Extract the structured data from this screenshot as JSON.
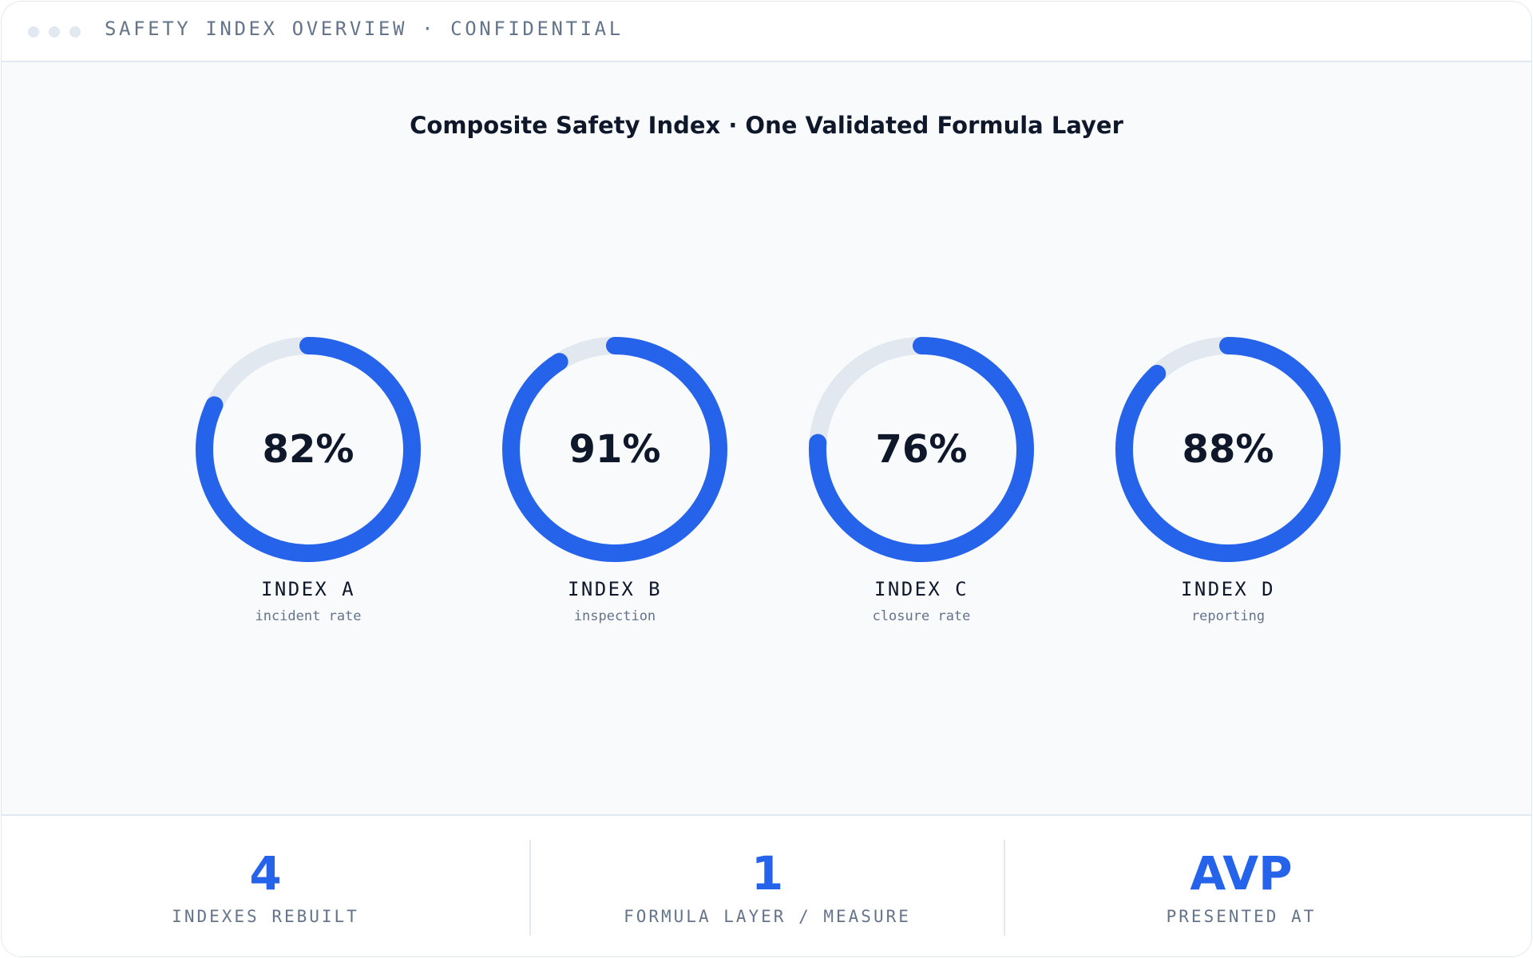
{
  "window": {
    "title": "SAFETY INDEX OVERVIEW · CONFIDENTIAL"
  },
  "main": {
    "headline": "Composite Safety Index · One Validated Formula Layer"
  },
  "colors": {
    "accent": "#2563eb",
    "track": "#e2e8f0",
    "text": "#0f172a",
    "muted": "#64748b"
  },
  "gauges": [
    {
      "value_text": "82%",
      "level": 0.82,
      "label": "INDEX A",
      "sublabel": "incident rate"
    },
    {
      "value_text": "91%",
      "level": 0.91,
      "label": "INDEX B",
      "sublabel": "inspection"
    },
    {
      "value_text": "76%",
      "level": 0.76,
      "label": "INDEX C",
      "sublabel": "closure rate"
    },
    {
      "value_text": "88%",
      "level": 0.88,
      "label": "INDEX D",
      "sublabel": "reporting"
    }
  ],
  "footer": {
    "stats": [
      {
        "value": "4",
        "label": "INDEXES REBUILT"
      },
      {
        "value": "1",
        "label": "FORMULA LAYER / MEASURE"
      },
      {
        "value": "AVP",
        "label": "PRESENTED AT"
      }
    ]
  }
}
